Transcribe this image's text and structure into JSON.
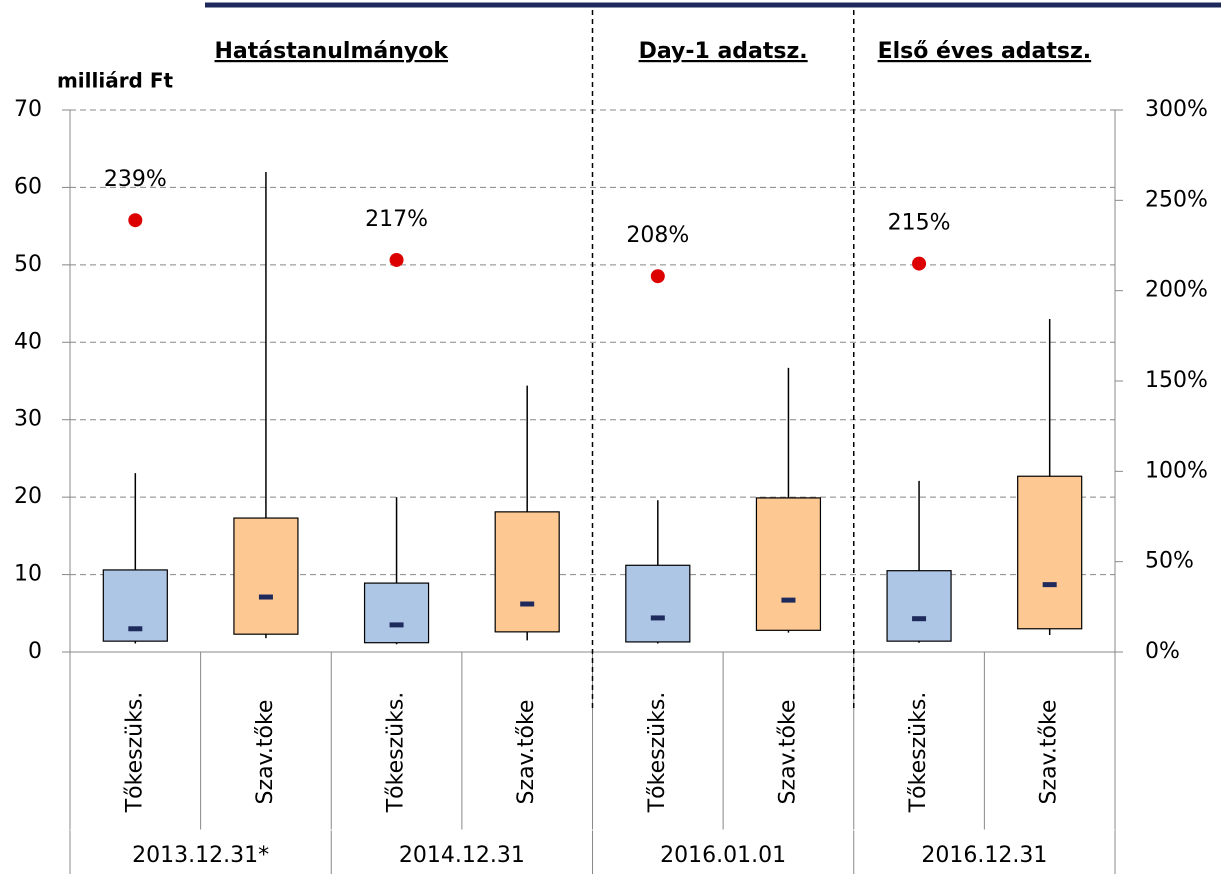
{
  "chart_data": {
    "type": "boxplot",
    "ylabel": "milliárd Ft",
    "ylim": [
      0,
      70
    ],
    "yticks": [
      0,
      10,
      20,
      30,
      40,
      50,
      60,
      70
    ],
    "y2lim": [
      0,
      300
    ],
    "y2ticks": [
      {
        "value": 0,
        "label": "0%"
      },
      {
        "value": 50,
        "label": "50%"
      },
      {
        "value": 100,
        "label": "100%"
      },
      {
        "value": 150,
        "label": "150%"
      },
      {
        "value": 200,
        "label": "200%"
      },
      {
        "value": 250,
        "label": "250%"
      },
      {
        "value": 300,
        "label": "300%"
      }
    ],
    "grid": true,
    "categories": [
      "Tőkeszüks.",
      "Szav.tőke",
      "Tőkeszüks.",
      "Szav.tőke",
      "Tőkeszüks.",
      "Szav.tőke",
      "Tőkeszüks.",
      "Szav.tőke"
    ],
    "groups": [
      "2013.12.31*",
      "2014.12.31",
      "2016.01.01",
      "2016.12.31"
    ],
    "sections": [
      {
        "label": "Hatástanulmányok",
        "groups": 2
      },
      {
        "label": "Day-1 adatsz.",
        "groups": 1
      },
      {
        "label": "Első éves adatsz.",
        "groups": 1
      }
    ],
    "box_colors": [
      "#aec6e6",
      "#fdc891"
    ],
    "median_color": "#1f2a5c",
    "min": [
      1.1,
      1.8,
      1.0,
      1.5,
      1.1,
      2.5,
      1.2,
      2.2
    ],
    "q1": [
      1.4,
      2.3,
      1.2,
      2.6,
      1.3,
      2.8,
      1.4,
      3.0
    ],
    "median": [
      3.0,
      7.1,
      3.5,
      6.2,
      4.4,
      6.7,
      4.3,
      8.7
    ],
    "q3": [
      10.6,
      17.3,
      8.9,
      18.1,
      11.2,
      19.9,
      10.5,
      22.7
    ],
    "max": [
      23.1,
      62,
      20,
      34.4,
      19.6,
      36.7,
      22.1,
      43
    ],
    "ratio": {
      "axis": "y2",
      "color": "#dd0000",
      "values": [
        239,
        217,
        208,
        215
      ],
      "value_labels": [
        "239%",
        "217%",
        "208%",
        "215%"
      ]
    }
  }
}
